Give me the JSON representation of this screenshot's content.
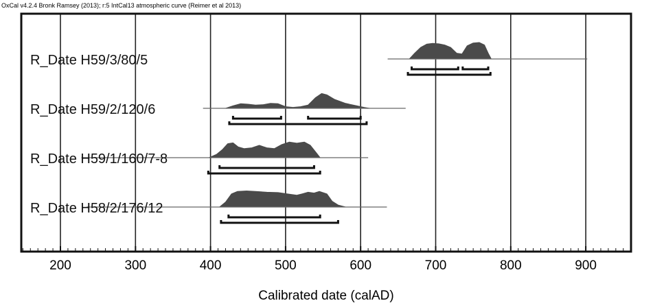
{
  "chart_data": {
    "type": "ridgeline",
    "header": "OxCal v4.2.4 Bronk Ramsey (2013); r:5 IntCal13 atmospheric curve (Reimer et al 2013)",
    "xlabel": "Calibrated date (calAD)",
    "xlim": [
      150,
      960
    ],
    "x_ticks": [
      200,
      300,
      400,
      500,
      600,
      700,
      800,
      900
    ],
    "grid": true,
    "colors": {
      "density": "#4a4a4a",
      "frame": "#111111",
      "grid": "#222222"
    },
    "series": [
      {
        "name": "R_Date H59/3/80/5",
        "line_range": [
          636,
          902
        ],
        "density": [
          [
            665,
            0
          ],
          [
            672,
            0.35
          ],
          [
            680,
            0.7
          ],
          [
            688,
            0.9
          ],
          [
            696,
            0.95
          ],
          [
            704,
            0.92
          ],
          [
            712,
            0.85
          ],
          [
            720,
            0.7
          ],
          [
            728,
            0.35
          ],
          [
            735,
            0.3
          ],
          [
            742,
            0.8
          ],
          [
            750,
            0.97
          ],
          [
            758,
            1.0
          ],
          [
            765,
            0.85
          ],
          [
            770,
            0.35
          ],
          [
            774,
            0
          ]
        ],
        "ranges_68": [
          [
            668,
            730
          ],
          [
            736,
            770
          ]
        ],
        "ranges_95": [
          [
            663,
            773
          ]
        ]
      },
      {
        "name": "R_Date H59/2/120/6",
        "line_range": [
          390,
          660
        ],
        "density": [
          [
            420,
            0
          ],
          [
            430,
            0.15
          ],
          [
            440,
            0.28
          ],
          [
            450,
            0.25
          ],
          [
            460,
            0.2
          ],
          [
            470,
            0.22
          ],
          [
            480,
            0.3
          ],
          [
            490,
            0.28
          ],
          [
            500,
            0.1
          ],
          [
            510,
            0.06
          ],
          [
            520,
            0.1
          ],
          [
            530,
            0.2
          ],
          [
            540,
            0.65
          ],
          [
            548,
            0.9
          ],
          [
            555,
            0.82
          ],
          [
            565,
            0.55
          ],
          [
            580,
            0.3
          ],
          [
            595,
            0.15
          ],
          [
            605,
            0.05
          ],
          [
            612,
            0
          ]
        ],
        "ranges_68": [
          [
            430,
            494
          ],
          [
            530,
            600
          ]
        ],
        "ranges_95": [
          [
            425,
            608
          ]
        ]
      },
      {
        "name": "R_Date H59/1/160/7-8",
        "line_range": [
          228,
          610
        ],
        "density": [
          [
            398,
            0
          ],
          [
            408,
            0.2
          ],
          [
            416,
            0.5
          ],
          [
            423,
            0.85
          ],
          [
            430,
            0.9
          ],
          [
            437,
            0.65
          ],
          [
            445,
            0.55
          ],
          [
            455,
            0.6
          ],
          [
            465,
            0.75
          ],
          [
            475,
            0.6
          ],
          [
            485,
            0.55
          ],
          [
            495,
            0.8
          ],
          [
            505,
            0.95
          ],
          [
            515,
            0.88
          ],
          [
            525,
            0.95
          ],
          [
            533,
            0.75
          ],
          [
            540,
            0.35
          ],
          [
            546,
            0
          ]
        ],
        "ranges_68": [
          [
            412,
            538
          ]
        ],
        "ranges_95": [
          [
            397,
            546
          ]
        ]
      },
      {
        "name": "R_Date H58/2/176/12",
        "line_range": [
          235,
          635
        ],
        "density": [
          [
            412,
            0
          ],
          [
            420,
            0.3
          ],
          [
            428,
            0.8
          ],
          [
            436,
            0.95
          ],
          [
            448,
            0.98
          ],
          [
            460,
            0.95
          ],
          [
            475,
            0.9
          ],
          [
            490,
            0.88
          ],
          [
            505,
            0.78
          ],
          [
            515,
            0.72
          ],
          [
            522,
            0.8
          ],
          [
            530,
            0.9
          ],
          [
            538,
            0.85
          ],
          [
            545,
            0.95
          ],
          [
            555,
            0.8
          ],
          [
            562,
            0.35
          ],
          [
            570,
            0.12
          ],
          [
            580,
            0
          ]
        ],
        "ranges_68": [
          [
            424,
            546
          ]
        ],
        "ranges_95": [
          [
            414,
            570
          ]
        ]
      }
    ]
  }
}
